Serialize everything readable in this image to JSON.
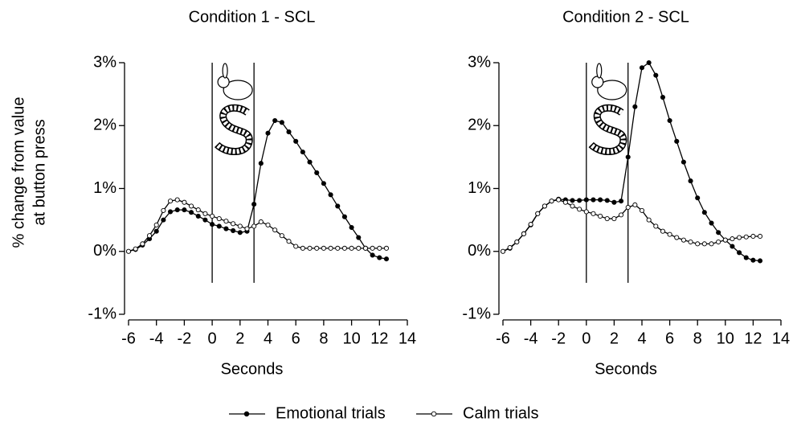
{
  "chart_data": [
    {
      "type": "line",
      "title": "Condition 1 - SCL",
      "xlabel": "Seconds",
      "ylabel": [
        "% change from value",
        "at button press"
      ],
      "xlim": [
        -6,
        14
      ],
      "ylim": [
        -1,
        3
      ],
      "xticks": [
        -6,
        -4,
        -2,
        0,
        2,
        4,
        6,
        8,
        10,
        12,
        14
      ],
      "yticks": [
        {
          "value": -1,
          "label": "-1%"
        },
        {
          "value": 0,
          "label": "0%"
        },
        {
          "value": 1,
          "label": "1%"
        },
        {
          "value": 2,
          "label": "2%"
        },
        {
          "value": 3,
          "label": "3%"
        }
      ],
      "vlines": [
        0,
        3
      ],
      "x": [
        -6,
        -5.5,
        -5,
        -4.5,
        -4,
        -3.5,
        -3,
        -2.5,
        -2,
        -1.5,
        -1,
        -0.5,
        0,
        0.5,
        1,
        1.5,
        2,
        2.5,
        3,
        3.5,
        4,
        4.5,
        5,
        5.5,
        6,
        6.5,
        7,
        7.5,
        8,
        8.5,
        9,
        9.5,
        10,
        10.5,
        11,
        11.5,
        12,
        12.5
      ],
      "series": [
        {
          "name": "Emotional trials",
          "color": "#000000",
          "marker_fill": "#000000",
          "values": [
            0,
            0.03,
            0.1,
            0.2,
            0.32,
            0.5,
            0.63,
            0.66,
            0.66,
            0.62,
            0.56,
            0.5,
            0.43,
            0.4,
            0.36,
            0.33,
            0.3,
            0.32,
            0.75,
            1.4,
            1.88,
            2.08,
            2.05,
            1.9,
            1.75,
            1.58,
            1.42,
            1.25,
            1.08,
            0.9,
            0.72,
            0.55,
            0.38,
            0.22,
            0.05,
            -0.06,
            -0.1,
            -0.12
          ]
        },
        {
          "name": "Calm trials",
          "color": "#000000",
          "marker_fill": "#ffffff",
          "values": [
            0,
            0.04,
            0.12,
            0.25,
            0.42,
            0.65,
            0.8,
            0.82,
            0.78,
            0.72,
            0.66,
            0.6,
            0.56,
            0.52,
            0.48,
            0.44,
            0.4,
            0.36,
            0.4,
            0.47,
            0.42,
            0.34,
            0.25,
            0.16,
            0.08,
            0.05,
            0.05,
            0.05,
            0.05,
            0.05,
            0.05,
            0.05,
            0.05,
            0.05,
            0.05,
            0.05,
            0.05,
            0.05
          ]
        }
      ]
    },
    {
      "type": "line",
      "title": "Condition 2 - SCL",
      "xlabel": "Seconds",
      "xlim": [
        -6,
        14
      ],
      "ylim": [
        -1,
        3
      ],
      "xticks": [
        -6,
        -4,
        -2,
        0,
        2,
        4,
        6,
        8,
        10,
        12,
        14
      ],
      "yticks": [
        {
          "value": -1,
          "label": "-1%"
        },
        {
          "value": 0,
          "label": "0%"
        },
        {
          "value": 1,
          "label": "1%"
        },
        {
          "value": 2,
          "label": "2%"
        },
        {
          "value": 3,
          "label": "3%"
        }
      ],
      "vlines": [
        0,
        3
      ],
      "x": [
        -6,
        -5.5,
        -5,
        -4.5,
        -4,
        -3.5,
        -3,
        -2.5,
        -2,
        -1.5,
        -1,
        -0.5,
        0,
        0.5,
        1,
        1.5,
        2,
        2.5,
        3,
        3.5,
        4,
        4.5,
        5,
        5.5,
        6,
        6.5,
        7,
        7.5,
        8,
        8.5,
        9,
        9.5,
        10,
        10.5,
        11,
        11.5,
        12,
        12.5
      ],
      "series": [
        {
          "color": "#000000",
          "marker_fill": "#000000",
          "values": [
            0,
            0.05,
            0.15,
            0.28,
            0.42,
            0.6,
            0.72,
            0.8,
            0.83,
            0.82,
            0.81,
            0.81,
            0.82,
            0.82,
            0.82,
            0.81,
            0.78,
            0.8,
            1.5,
            2.3,
            2.92,
            3.0,
            2.8,
            2.45,
            2.08,
            1.75,
            1.42,
            1.12,
            0.85,
            0.62,
            0.45,
            0.3,
            0.18,
            0.08,
            -0.02,
            -0.1,
            -0.14,
            -0.15
          ]
        },
        {
          "color": "#000000",
          "marker_fill": "#ffffff",
          "values": [
            0,
            0.06,
            0.15,
            0.28,
            0.43,
            0.6,
            0.72,
            0.8,
            0.82,
            0.78,
            0.72,
            0.67,
            0.63,
            0.6,
            0.56,
            0.52,
            0.52,
            0.58,
            0.7,
            0.74,
            0.65,
            0.5,
            0.4,
            0.32,
            0.27,
            0.22,
            0.18,
            0.15,
            0.12,
            0.12,
            0.12,
            0.15,
            0.18,
            0.2,
            0.22,
            0.23,
            0.24,
            0.24
          ]
        }
      ]
    }
  ]
}
